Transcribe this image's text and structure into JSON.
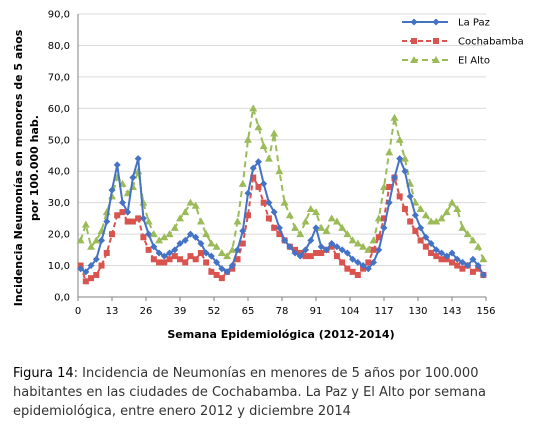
{
  "chart_data": {
    "type": "line",
    "title": "",
    "xlabel": "Semana Epidemiológica (2012-2014)",
    "ylabel": "Incidencia Neumonías en menores de 5 años por 100.000 hab.",
    "xlim": [
      0,
      156
    ],
    "ylim": [
      0,
      90
    ],
    "x_ticks": [
      "0",
      "13",
      "26",
      "39",
      "52",
      "65",
      "78",
      "91",
      "104",
      "117",
      "130",
      "143",
      "156"
    ],
    "y_ticks": [
      "0,0",
      "10,0",
      "20,0",
      "30,0",
      "40,0",
      "50,0",
      "60,0",
      "70,0",
      "80,0",
      "90,0"
    ],
    "grid": "horizontal",
    "legend_position": "top-right",
    "x": [
      1,
      3,
      5,
      7,
      9,
      11,
      13,
      15,
      17,
      19,
      21,
      23,
      25,
      27,
      29,
      31,
      33,
      35,
      37,
      39,
      41,
      43,
      45,
      47,
      49,
      51,
      53,
      55,
      57,
      59,
      61,
      63,
      65,
      67,
      69,
      71,
      73,
      75,
      77,
      79,
      81,
      83,
      85,
      87,
      89,
      91,
      93,
      95,
      97,
      99,
      101,
      103,
      105,
      107,
      109,
      111,
      113,
      115,
      117,
      119,
      121,
      123,
      125,
      127,
      129,
      131,
      133,
      135,
      137,
      139,
      141,
      143,
      145,
      147,
      149,
      151,
      153,
      155
    ],
    "series": [
      {
        "name": "La Paz",
        "color": "#4472C4",
        "marker": "diamond",
        "values": [
          9,
          8,
          10,
          12,
          18,
          24,
          34,
          42,
          30,
          27,
          38,
          44,
          25,
          20,
          16,
          14,
          13,
          14,
          15,
          17,
          18,
          20,
          19,
          17,
          14,
          13,
          11,
          9,
          8,
          10,
          15,
          21,
          33,
          41,
          43,
          36,
          30,
          27,
          22,
          18,
          16,
          14,
          13,
          15,
          18,
          22,
          16,
          15,
          17,
          16,
          15,
          14,
          12,
          11,
          10,
          9,
          11,
          15,
          22,
          30,
          38,
          44,
          40,
          32,
          26,
          22,
          19,
          17,
          15,
          14,
          13,
          14,
          12,
          11,
          10,
          12,
          10,
          7
        ]
      },
      {
        "name": "Cochabamba",
        "color": "#D9534F",
        "marker": "square",
        "values": [
          10,
          5,
          6,
          7,
          10,
          14,
          20,
          26,
          27,
          24,
          24,
          25,
          19,
          15,
          12,
          11,
          11,
          12,
          13,
          12,
          11,
          13,
          12,
          14,
          11,
          8,
          7,
          6,
          8,
          9,
          12,
          17,
          26,
          38,
          35,
          30,
          25,
          22,
          20,
          18,
          16,
          15,
          14,
          13,
          13,
          14,
          14,
          15,
          16,
          13,
          11,
          9,
          8,
          7,
          9,
          11,
          15,
          19,
          25,
          35,
          38,
          32,
          28,
          24,
          21,
          18,
          16,
          14,
          13,
          12,
          12,
          11,
          10,
          9,
          10,
          8,
          9,
          7
        ]
      },
      {
        "name": "El Alto",
        "color": "#9BBB59",
        "marker": "triangle",
        "values": [
          18,
          23,
          16,
          18,
          21,
          27,
          32,
          38,
          36,
          33,
          35,
          40,
          30,
          24,
          20,
          18,
          19,
          20,
          22,
          25,
          27,
          30,
          29,
          24,
          20,
          17,
          16,
          14,
          13,
          15,
          24,
          36,
          50,
          60,
          54,
          48,
          44,
          52,
          40,
          30,
          26,
          22,
          20,
          24,
          28,
          27,
          22,
          21,
          25,
          24,
          22,
          20,
          18,
          17,
          16,
          15,
          18,
          25,
          35,
          46,
          57,
          50,
          44,
          36,
          30,
          28,
          26,
          24,
          24,
          25,
          27,
          30,
          28,
          22,
          20,
          18,
          16,
          12
        ]
      }
    ]
  },
  "caption": {
    "figure_label": "Figura 14",
    "text": ":  Incidencia de Neumonías en menores de 5 años por 100.000 habitantes en las ciudades de Cochabamba. La Paz y El Alto por semana epidemiológica, entre enero 2012 y diciembre 2014"
  }
}
